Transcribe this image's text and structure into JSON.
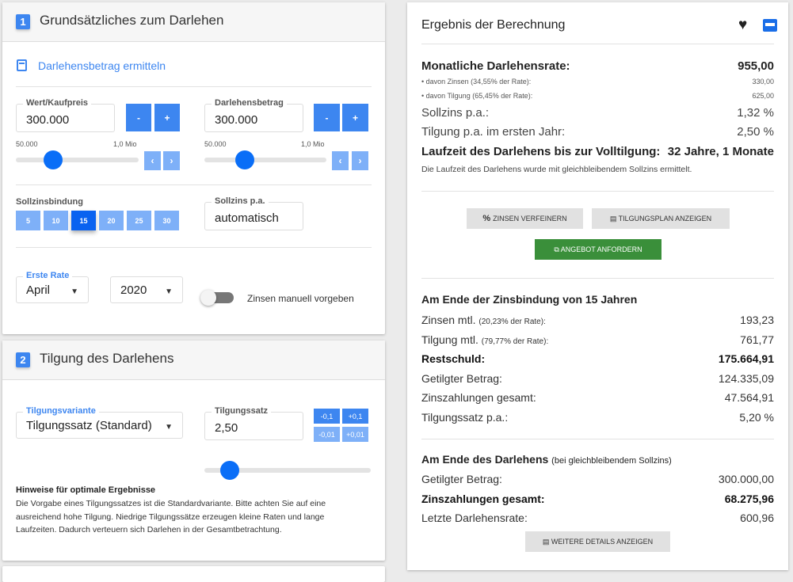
{
  "section1": {
    "number": "1",
    "title": "Grundsätzliches zum Darlehen",
    "link": "Darlehensbetrag ermitteln",
    "kaufpreis": {
      "label": "Wert/Kaufpreis",
      "value": "300.000",
      "min": "50.000",
      "max": "1,0 Mio",
      "slider_value": 300000
    },
    "darlehen": {
      "label": "Darlehensbetrag",
      "value": "300.000",
      "min": "50.000",
      "max": "1,0 Mio",
      "slider_value": 300000
    },
    "minus": "-",
    "plus": "+",
    "sollzinsbindung": {
      "label": "Sollzinsbindung",
      "options": [
        "5",
        "10",
        "15",
        "20",
        "25",
        "30"
      ],
      "selected": "15"
    },
    "sollzins": {
      "label": "Sollzins p.a.",
      "value": "automatisch"
    },
    "erste_rate": {
      "label": "Erste Rate",
      "month": "April",
      "year": "2020"
    },
    "toggle": {
      "label": "Zinsen manuell vorgeben",
      "on": false
    }
  },
  "section2": {
    "number": "2",
    "title": "Tilgung des Darlehens",
    "variante": {
      "label": "Tilgungsvariante",
      "value": "Tilgungssatz (Standard)"
    },
    "satz": {
      "label": "Tilgungssatz",
      "value": "2,50"
    },
    "steps": [
      "-0,1",
      "+0,1",
      "-0,01",
      "+0,01"
    ],
    "hint_title": "Hinweise für optimale Ergebnisse",
    "hint_text": "Die Vorgabe eines Tilgungssatzes ist die Standardvariante. Bitte achten Sie auf eine ausreichend hohe Tilgung. Niedrige Tilgungssätze erzeugen kleine Raten und lange Laufzeiten. Dadurch verteuern sich Darlehen in der Gesamtbetrachtung."
  },
  "result": {
    "title": "Ergebnis der Berechnung",
    "rate_label": "Monatliche Darlehensrate:",
    "rate": "955,00",
    "zinsen_label": "• davon Zinsen (34,55% der Rate):",
    "zinsen": "330,00",
    "tilgung_label": "• davon Tilgung (65,45% der Rate):",
    "tilgung": "625,00",
    "sollzins_label": "Sollzins p.a.:",
    "sollzins": "1,32 %",
    "tilg_pa_label": "Tilgung p.a. im ersten Jahr:",
    "tilg_pa": "2,50 %",
    "laufzeit_label": "Laufzeit des Darlehens bis zur Volltilgung:",
    "laufzeit": "32 Jahre, 1 Monate",
    "laufzeit_note": "Die Laufzeit des Darlehens wurde mit gleichbleibendem Sollzins ermittelt.",
    "btn_zinsen": "ZINSEN VERFEINERN",
    "btn_plan": "TILGUNGSPLAN ANZEIGEN",
    "btn_angebot": "ANGEBOT ANFORDERN",
    "end_bind_title": "Am Ende der Zinsbindung von 15 Jahren",
    "end_bind": [
      {
        "label": "Zinsen mtl.",
        "sub": "(20,23% der Rate):",
        "value": "193,23",
        "bold": false
      },
      {
        "label": "Tilgung mtl.",
        "sub": "(79,77% der Rate):",
        "value": "761,77",
        "bold": false
      },
      {
        "label": "Restschuld:",
        "sub": "",
        "value": "175.664,91",
        "bold": true
      },
      {
        "label": "Getilgter Betrag:",
        "sub": "",
        "value": "124.335,09",
        "bold": false
      },
      {
        "label": "Zinszahlungen gesamt:",
        "sub": "",
        "value": "47.564,91",
        "bold": false
      },
      {
        "label": "Tilgungssatz p.a.:",
        "sub": "",
        "value": "5,20 %",
        "bold": false
      }
    ],
    "end_loan_title": "Am Ende des Darlehens",
    "end_loan_sub": "(bei gleichbleibendem Sollzins)",
    "end_loan": [
      {
        "label": "Getilgter Betrag:",
        "value": "300.000,00",
        "bold": false
      },
      {
        "label": "Zinszahlungen gesamt:",
        "value": "68.275,96",
        "bold": true
      },
      {
        "label": "Letzte Darlehensrate:",
        "value": "600,96",
        "bold": false
      }
    ],
    "btn_details": "WEITERE DETAILS ANZEIGEN"
  },
  "colors": {
    "accent": "#3d86f0",
    "green": "#3a8f3a"
  }
}
